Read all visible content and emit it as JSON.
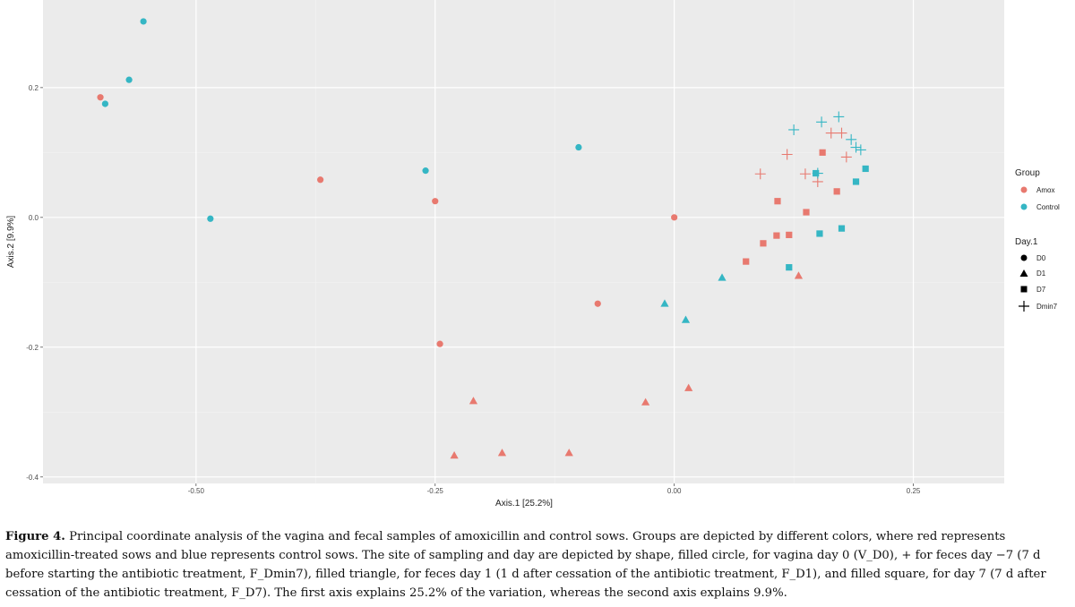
{
  "chart_data": {
    "type": "scatter",
    "xlabel": "Axis.1  [25.2%]",
    "ylabel": "Axis.2  [9.9%]",
    "xlim": [
      -0.66,
      0.345
    ],
    "ylim": [
      -0.41,
      0.335
    ],
    "x_ticks": [
      -0.5,
      -0.25,
      0.0,
      0.25
    ],
    "x_tick_labels": [
      "-0.50",
      "-0.25",
      "0.00",
      "0.25"
    ],
    "y_ticks": [
      -0.4,
      -0.2,
      0.0,
      0.2
    ],
    "y_tick_labels": [
      "-0.4",
      "-0.2",
      "0.0",
      "0.2"
    ],
    "grid": true,
    "legend_position": "right",
    "legend": {
      "group_title": "Group",
      "groups": [
        {
          "name": "Amox",
          "color": "#E8796F"
        },
        {
          "name": "Control",
          "color": "#35B6C4"
        }
      ],
      "day_title": "Day.1",
      "days": [
        {
          "name": "D0",
          "shape": "circle"
        },
        {
          "name": "D1",
          "shape": "triangle"
        },
        {
          "name": "D7",
          "shape": "square"
        },
        {
          "name": "Dmin7",
          "shape": "plus"
        }
      ]
    },
    "points": [
      {
        "x": -0.6,
        "y": 0.185,
        "group": "Amox",
        "day": "D0"
      },
      {
        "x": -0.37,
        "y": 0.058,
        "group": "Amox",
        "day": "D0"
      },
      {
        "x": -0.25,
        "y": 0.025,
        "group": "Amox",
        "day": "D0"
      },
      {
        "x": -0.245,
        "y": -0.195,
        "group": "Amox",
        "day": "D0"
      },
      {
        "x": -0.08,
        "y": -0.133,
        "group": "Amox",
        "day": "D0"
      },
      {
        "x": 0.0,
        "y": 0.0,
        "group": "Amox",
        "day": "D0"
      },
      {
        "x": -0.23,
        "y": -0.367,
        "group": "Amox",
        "day": "D1"
      },
      {
        "x": -0.21,
        "y": -0.283,
        "group": "Amox",
        "day": "D1"
      },
      {
        "x": -0.18,
        "y": -0.363,
        "group": "Amox",
        "day": "D1"
      },
      {
        "x": -0.11,
        "y": -0.363,
        "group": "Amox",
        "day": "D1"
      },
      {
        "x": -0.03,
        "y": -0.285,
        "group": "Amox",
        "day": "D1"
      },
      {
        "x": 0.015,
        "y": -0.263,
        "group": "Amox",
        "day": "D1"
      },
      {
        "x": 0.13,
        "y": -0.09,
        "group": "Amox",
        "day": "D1"
      },
      {
        "x": 0.075,
        "y": -0.068,
        "group": "Amox",
        "day": "D7"
      },
      {
        "x": 0.093,
        "y": -0.04,
        "group": "Amox",
        "day": "D7"
      },
      {
        "x": 0.107,
        "y": -0.028,
        "group": "Amox",
        "day": "D7"
      },
      {
        "x": 0.108,
        "y": 0.025,
        "group": "Amox",
        "day": "D7"
      },
      {
        "x": 0.12,
        "y": -0.027,
        "group": "Amox",
        "day": "D7"
      },
      {
        "x": 0.138,
        "y": 0.008,
        "group": "Amox",
        "day": "D7"
      },
      {
        "x": 0.155,
        "y": 0.1,
        "group": "Amox",
        "day": "D7"
      },
      {
        "x": 0.17,
        "y": 0.04,
        "group": "Amox",
        "day": "D7"
      },
      {
        "x": 0.09,
        "y": 0.067,
        "group": "Amox",
        "day": "Dmin7"
      },
      {
        "x": 0.118,
        "y": 0.097,
        "group": "Amox",
        "day": "Dmin7"
      },
      {
        "x": 0.137,
        "y": 0.067,
        "group": "Amox",
        "day": "Dmin7"
      },
      {
        "x": 0.15,
        "y": 0.055,
        "group": "Amox",
        "day": "Dmin7"
      },
      {
        "x": 0.164,
        "y": 0.13,
        "group": "Amox",
        "day": "Dmin7"
      },
      {
        "x": 0.175,
        "y": 0.13,
        "group": "Amox",
        "day": "Dmin7"
      },
      {
        "x": 0.18,
        "y": 0.093,
        "group": "Amox",
        "day": "Dmin7"
      },
      {
        "x": -0.595,
        "y": 0.175,
        "group": "Control",
        "day": "D0"
      },
      {
        "x": -0.57,
        "y": 0.212,
        "group": "Control",
        "day": "D0"
      },
      {
        "x": -0.555,
        "y": 0.302,
        "group": "Control",
        "day": "D0"
      },
      {
        "x": -0.485,
        "y": -0.002,
        "group": "Control",
        "day": "D0"
      },
      {
        "x": -0.26,
        "y": 0.072,
        "group": "Control",
        "day": "D0"
      },
      {
        "x": -0.1,
        "y": 0.108,
        "group": "Control",
        "day": "D0"
      },
      {
        "x": -0.01,
        "y": -0.133,
        "group": "Control",
        "day": "D1"
      },
      {
        "x": 0.012,
        "y": -0.158,
        "group": "Control",
        "day": "D1"
      },
      {
        "x": 0.05,
        "y": -0.093,
        "group": "Control",
        "day": "D1"
      },
      {
        "x": 0.12,
        "y": -0.077,
        "group": "Control",
        "day": "D7"
      },
      {
        "x": 0.148,
        "y": 0.068,
        "group": "Control",
        "day": "D7"
      },
      {
        "x": 0.152,
        "y": -0.025,
        "group": "Control",
        "day": "D7"
      },
      {
        "x": 0.175,
        "y": -0.017,
        "group": "Control",
        "day": "D7"
      },
      {
        "x": 0.19,
        "y": 0.055,
        "group": "Control",
        "day": "D7"
      },
      {
        "x": 0.2,
        "y": 0.075,
        "group": "Control",
        "day": "D7"
      },
      {
        "x": 0.125,
        "y": 0.135,
        "group": "Control",
        "day": "Dmin7"
      },
      {
        "x": 0.15,
        "y": 0.068,
        "group": "Control",
        "day": "Dmin7"
      },
      {
        "x": 0.154,
        "y": 0.147,
        "group": "Control",
        "day": "Dmin7"
      },
      {
        "x": 0.172,
        "y": 0.155,
        "group": "Control",
        "day": "Dmin7"
      },
      {
        "x": 0.185,
        "y": 0.12,
        "group": "Control",
        "day": "Dmin7"
      },
      {
        "x": 0.19,
        "y": 0.108,
        "group": "Control",
        "day": "Dmin7"
      },
      {
        "x": 0.195,
        "y": 0.104,
        "group": "Control",
        "day": "Dmin7"
      }
    ]
  },
  "caption": {
    "label": "Figure 4.",
    "text": "Principal coordinate analysis of the vagina and fecal samples of amoxicillin and control sows. Groups are depicted by different colors, where red represents amoxicillin-treated sows and blue represents control sows. The site of sampling and day are depicted by shape, filled circle, for vagina day 0 (V_D0), + for feces day −7 (7 d before starting the antibiotic treatment, F_Dmin7), filled triangle, for feces day 1 (1 d after cessation of the antibiotic treatment, F_D1), and filled square, for day 7 (7 d after cessation of the antibiotic treatment, F_D7). The first axis explains 25.2% of the variation, whereas the second axis explains 9.9%."
  }
}
